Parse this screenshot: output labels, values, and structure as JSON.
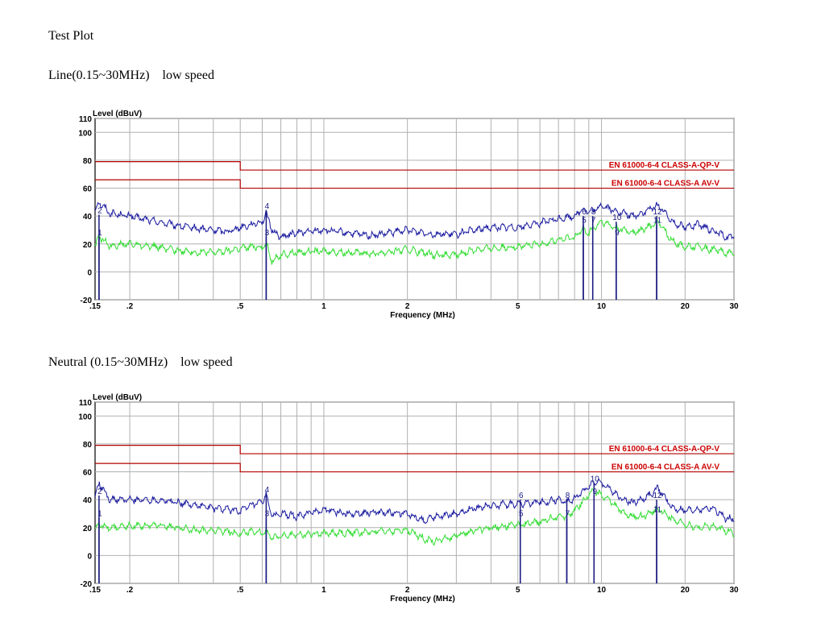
{
  "heading": "Test Plot",
  "line_caption": "Line(0.15~30MHz)    low speed",
  "neutral_caption": "Neutral (0.15~30MHz)    low speed",
  "colors": {
    "qp_trace": "#1a1aa0",
    "av_trace": "#33dd33",
    "limit": "#b30000",
    "marker": "#1a1a80",
    "grid": "#b0b0b0"
  },
  "chart_data": [
    {
      "type": "line",
      "ylabel": "Level (dBuV)",
      "xlabel": "Frequency (MHz)",
      "xscale": "log",
      "xlim": [
        0.15,
        30
      ],
      "ylim": [
        -20,
        110
      ],
      "yticks": [
        "110",
        "100",
        "80",
        "60",
        "40",
        "20",
        "0",
        "-20"
      ],
      "xticks": [
        ".15",
        ".2",
        ".5",
        "1",
        "2",
        "5",
        "10",
        "20",
        "30"
      ],
      "limit_labels": [
        "EN 61000-6-4 CLASS-A-QP-V",
        "EN 61000-6-4 CLASS-A AV-V"
      ],
      "limits": [
        {
          "name": "EN 61000-6-4 CLASS-A-QP-V",
          "x": [
            0.15,
            0.5,
            0.5,
            30
          ],
          "y": [
            79,
            79,
            73,
            73
          ]
        },
        {
          "name": "EN 61000-6-4 CLASS-A AV-V",
          "x": [
            0.15,
            0.5,
            0.5,
            30
          ],
          "y": [
            66,
            66,
            60,
            60
          ]
        }
      ],
      "series": [
        {
          "x": [
            0.15,
            0.155,
            0.17,
            0.2,
            0.25,
            0.3,
            0.35,
            0.4,
            0.45,
            0.5,
            0.55,
            0.6,
            0.62,
            0.65,
            0.7,
            0.8,
            1,
            1.2,
            1.5,
            2,
            2.5,
            3,
            3.5,
            4,
            5,
            6,
            7,
            8,
            8.5,
            9,
            9.5,
            10,
            11,
            12,
            13,
            14,
            15,
            16,
            18,
            20,
            22,
            25,
            28,
            30
          ],
          "values": [
            44,
            50,
            42,
            40,
            36,
            33,
            31,
            30,
            29,
            32,
            34,
            36,
            42,
            30,
            25,
            28,
            30,
            28,
            26,
            30,
            27,
            27,
            30,
            32,
            32,
            35,
            38,
            40,
            45,
            43,
            44,
            48,
            44,
            42,
            40,
            42,
            45,
            48,
            36,
            32,
            34,
            30,
            25,
            25
          ]
        },
        {
          "x": [
            0.15,
            0.155,
            0.17,
            0.2,
            0.25,
            0.3,
            0.35,
            0.4,
            0.45,
            0.5,
            0.55,
            0.6,
            0.62,
            0.65,
            0.7,
            0.8,
            1,
            1.2,
            1.5,
            2,
            2.5,
            3,
            3.5,
            4,
            5,
            6,
            7,
            8,
            8.5,
            9,
            9.5,
            10,
            11,
            12,
            13,
            14,
            15,
            16,
            18,
            20,
            22,
            25,
            28,
            30
          ],
          "values": [
            18,
            25,
            19,
            20,
            18,
            15,
            14,
            14,
            15,
            17,
            18,
            18,
            20,
            8,
            12,
            14,
            15,
            14,
            13,
            16,
            12,
            12,
            16,
            17,
            18,
            20,
            23,
            25,
            30,
            28,
            32,
            36,
            32,
            30,
            28,
            30,
            33,
            36,
            22,
            18,
            18,
            16,
            14,
            13
          ]
        }
      ],
      "markers": [
        {
          "label": "1",
          "x": 0.155,
          "y": 25
        },
        {
          "label": "2",
          "x": 0.155,
          "y": 41
        },
        {
          "label": "3",
          "x": 0.62,
          "y": 25
        },
        {
          "label": "4",
          "x": 0.62,
          "y": 44
        },
        {
          "label": "5",
          "x": 8.6,
          "y": 34
        },
        {
          "label": "6",
          "x": 8.6,
          "y": 40
        },
        {
          "label": "7",
          "x": 9.3,
          "y": 34
        },
        {
          "label": "8",
          "x": 9.3,
          "y": 40
        },
        {
          "label": "9",
          "x": 11.3,
          "y": 25
        },
        {
          "label": "10",
          "x": 11.3,
          "y": 36
        },
        {
          "label": "11",
          "x": 15.8,
          "y": 34
        },
        {
          "label": "12",
          "x": 15.8,
          "y": 40
        }
      ]
    },
    {
      "type": "line",
      "ylabel": "Level (dBuV)",
      "xlabel": "Frequency (MHz)",
      "xscale": "log",
      "xlim": [
        0.15,
        30
      ],
      "ylim": [
        -20,
        110
      ],
      "yticks": [
        "110",
        "100",
        "80",
        "60",
        "40",
        "20",
        "0",
        "-20"
      ],
      "xticks": [
        ".15",
        ".2",
        ".5",
        "1",
        "2",
        "5",
        "10",
        "20",
        "30"
      ],
      "limit_labels": [
        "EN 61000-6-4 CLASS-A-QP-V",
        "EN 61000-6-4 CLASS-A AV-V"
      ],
      "limits": [
        {
          "name": "EN 61000-6-4 CLASS-A-QP-V",
          "x": [
            0.15,
            0.5,
            0.5,
            30
          ],
          "y": [
            79,
            79,
            73,
            73
          ]
        },
        {
          "name": "EN 61000-6-4 CLASS-A AV-V",
          "x": [
            0.15,
            0.5,
            0.5,
            30
          ],
          "y": [
            66,
            66,
            60,
            60
          ]
        }
      ],
      "series": [
        {
          "x": [
            0.15,
            0.155,
            0.17,
            0.2,
            0.25,
            0.3,
            0.35,
            0.4,
            0.45,
            0.5,
            0.55,
            0.6,
            0.62,
            0.65,
            0.7,
            0.8,
            1,
            1.2,
            1.5,
            2,
            2.3,
            2.5,
            3,
            3.5,
            4,
            5,
            6,
            7,
            7.5,
            8,
            8.5,
            9,
            9.5,
            10,
            11,
            12,
            13,
            14,
            15,
            16,
            18,
            20,
            22,
            25,
            28,
            30
          ],
          "values": [
            42,
            52,
            40,
            40,
            40,
            38,
            36,
            34,
            33,
            32,
            36,
            38,
            44,
            28,
            30,
            28,
            33,
            30,
            31,
            30,
            25,
            28,
            30,
            34,
            36,
            37,
            38,
            40,
            38,
            41,
            45,
            50,
            53,
            52,
            46,
            40,
            38,
            40,
            44,
            48,
            34,
            32,
            33,
            34,
            27,
            26
          ]
        },
        {
          "x": [
            0.15,
            0.155,
            0.17,
            0.2,
            0.25,
            0.3,
            0.35,
            0.4,
            0.45,
            0.5,
            0.55,
            0.6,
            0.62,
            0.65,
            0.7,
            0.8,
            1,
            1.2,
            1.5,
            2,
            2.3,
            2.5,
            3,
            3.5,
            4,
            5,
            6,
            7,
            7.5,
            8,
            8.5,
            9,
            9.5,
            10,
            11,
            12,
            13,
            14,
            15,
            16,
            18,
            20,
            22,
            25,
            28,
            30
          ],
          "values": [
            18,
            22,
            20,
            21,
            22,
            20,
            18,
            18,
            17,
            16,
            17,
            16,
            18,
            12,
            14,
            15,
            16,
            16,
            17,
            18,
            12,
            10,
            14,
            18,
            20,
            22,
            24,
            28,
            28,
            32,
            38,
            44,
            46,
            43,
            38,
            30,
            28,
            28,
            30,
            34,
            26,
            22,
            20,
            21,
            18,
            16
          ]
        }
      ],
      "markers": [
        {
          "label": "1",
          "x": 0.155,
          "y": 27
        },
        {
          "label": "2",
          "x": 0.155,
          "y": 43
        },
        {
          "label": "3",
          "x": 0.62,
          "y": 27
        },
        {
          "label": "4",
          "x": 0.62,
          "y": 44
        },
        {
          "label": "5",
          "x": 5.1,
          "y": 27
        },
        {
          "label": "6",
          "x": 5.1,
          "y": 40
        },
        {
          "label": "7",
          "x": 7.5,
          "y": 27
        },
        {
          "label": "8",
          "x": 7.5,
          "y": 40
        },
        {
          "label": "9",
          "x": 9.4,
          "y": 43
        },
        {
          "label": "10",
          "x": 9.4,
          "y": 52
        },
        {
          "label": "11",
          "x": 15.8,
          "y": 30
        },
        {
          "label": "12",
          "x": 15.8,
          "y": 40
        }
      ]
    }
  ]
}
